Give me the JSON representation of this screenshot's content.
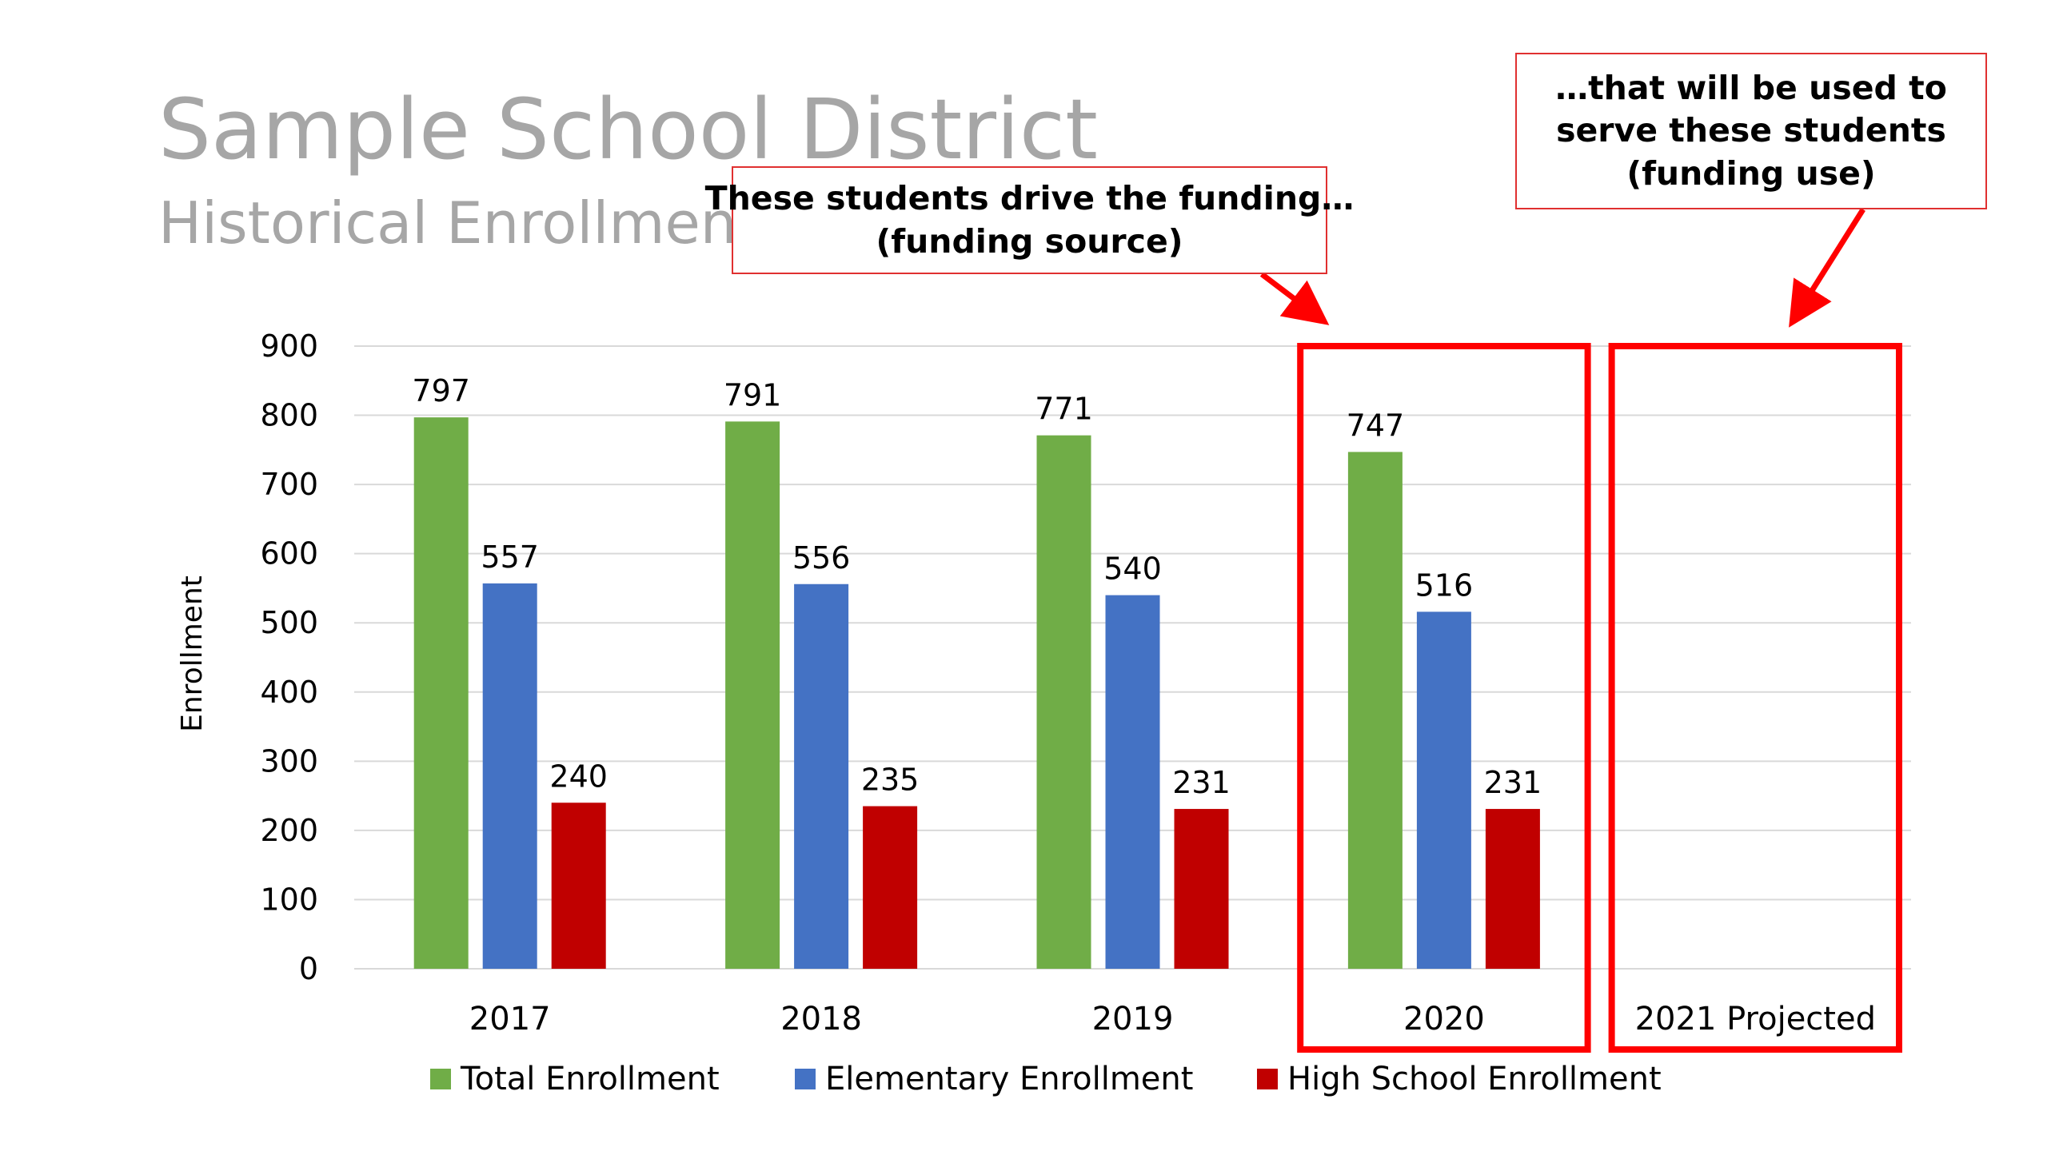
{
  "title": "Sample School District",
  "subtitle": "Historical Enrollment",
  "callouts": {
    "source": {
      "line1": "These students drive the funding…",
      "line2": "(funding source)"
    },
    "use": {
      "line1": "…that will be used to",
      "line2": "serve these students",
      "line3": "(funding use)"
    }
  },
  "colors": {
    "total": "#70ad47",
    "elementary": "#4472c4",
    "high_school": "#c00000",
    "highlight": "#ff0000",
    "grid": "#d9d9d9"
  },
  "chart_data": {
    "type": "bar",
    "title": "",
    "xlabel": "",
    "ylabel": "Enrollment",
    "ylim": [
      0,
      900
    ],
    "yticks": [
      0,
      100,
      200,
      300,
      400,
      500,
      600,
      700,
      800,
      900
    ],
    "categories": [
      "2017",
      "2018",
      "2019",
      "2020",
      "2021 Projected"
    ],
    "series": [
      {
        "name": "Total Enrollment",
        "values": [
          797,
          791,
          771,
          747,
          null
        ]
      },
      {
        "name": "Elementary Enrollment",
        "values": [
          557,
          556,
          540,
          516,
          null
        ]
      },
      {
        "name": "High School Enrollment",
        "values": [
          240,
          235,
          231,
          231,
          null
        ]
      }
    ],
    "legend_position": "bottom",
    "grid": true,
    "highlighted_categories": [
      "2020",
      "2021 Projected"
    ]
  }
}
